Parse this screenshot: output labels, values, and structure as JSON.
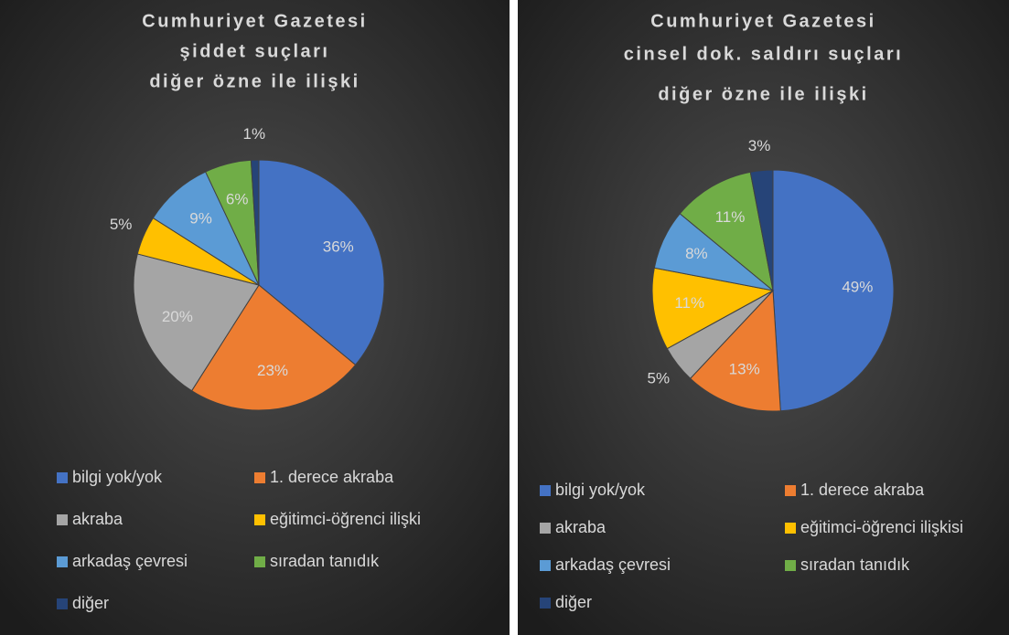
{
  "chart_data": [
    {
      "type": "pie",
      "title": [
        "Cumhuriyet Gazetesi",
        "şiddet suçları",
        "diğer özne ile ilişki"
      ],
      "categories": [
        "bilgi yok/yok",
        "1. derece akraba",
        "akraba",
        "eğitimci-öğrenci ilişki",
        "arkadaş çevresi",
        "sıradan tanıdık",
        "diğer"
      ],
      "values": [
        36,
        23,
        20,
        5,
        9,
        6,
        1
      ],
      "value_labels": [
        "36%",
        "23%",
        "20%",
        "5%",
        "9%",
        "6%",
        "1%"
      ],
      "colors": [
        "#4472c4",
        "#ed7d31",
        "#a5a5a5",
        "#ffc000",
        "#5b9bd5",
        "#70ad47",
        "#264478"
      ],
      "legend": "bottom"
    },
    {
      "type": "pie",
      "title": [
        "Cumhuriyet Gazetesi",
        "cinsel dok. saldırı suçları",
        "diğer özne ile ilişki"
      ],
      "categories": [
        "bilgi yok/yok",
        "1. derece akraba",
        "akraba",
        "eğitimci-öğrenci ilişkisi",
        "arkadaş çevresi",
        "sıradan tanıdık",
        "diğer"
      ],
      "values": [
        49,
        13,
        5,
        11,
        8,
        11,
        3
      ],
      "value_labels": [
        "49%",
        "13%",
        "5%",
        "11%",
        "8%",
        "11%",
        "3%"
      ],
      "colors": [
        "#4472c4",
        "#ed7d31",
        "#a5a5a5",
        "#ffc000",
        "#5b9bd5",
        "#70ad47",
        "#264478"
      ],
      "legend": "bottom"
    }
  ]
}
